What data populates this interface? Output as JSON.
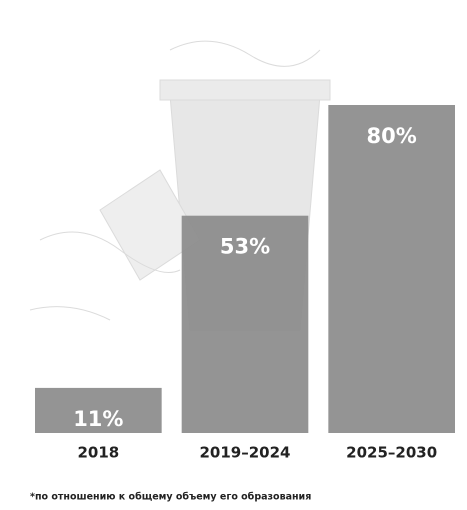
{
  "chart_data": {
    "type": "bar",
    "categories": [
      "2018",
      "2019–2024",
      "2025–2030"
    ],
    "values": [
      11,
      53,
      80
    ],
    "value_labels": [
      "11%",
      "53%",
      "80%"
    ],
    "color": "#8b8b8b",
    "footnote": "*по отношению к общему объему его образования"
  }
}
